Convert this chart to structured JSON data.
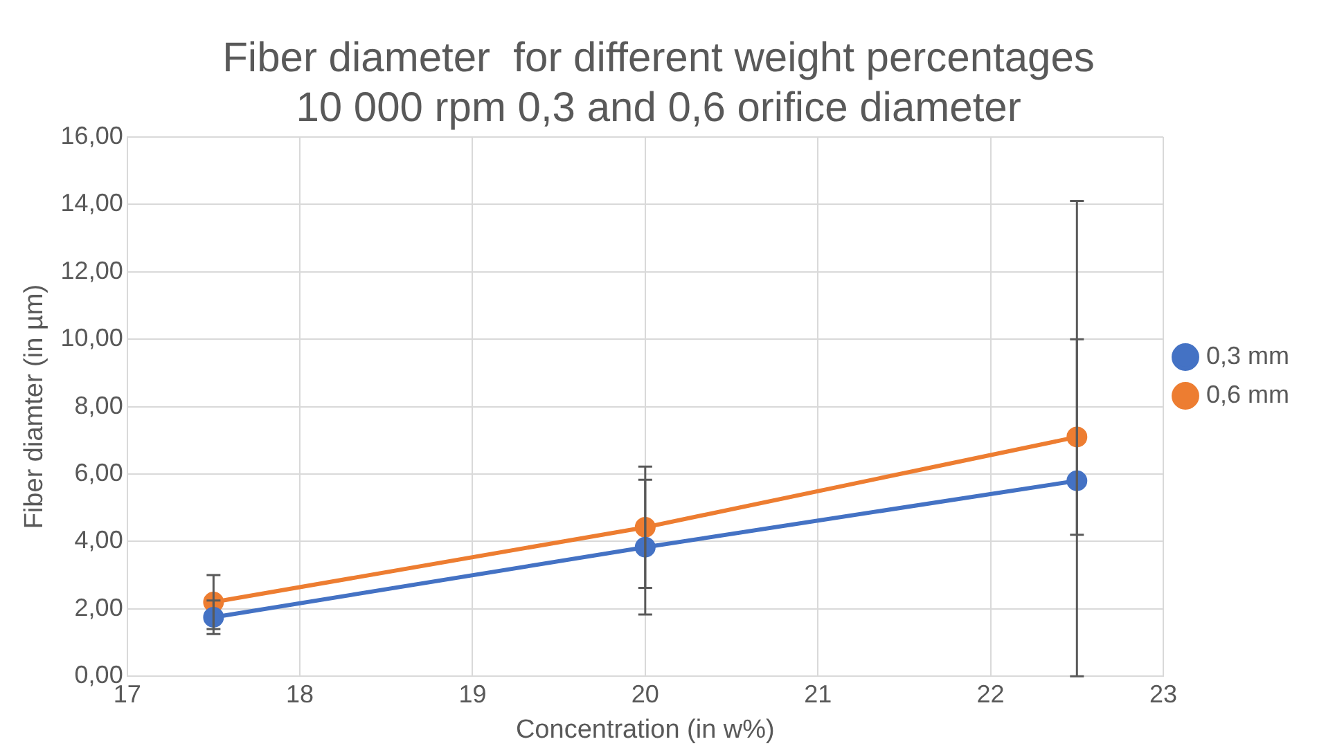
{
  "chart_data": {
    "type": "line",
    "title": "Fiber diameter  for different weight percentages\n10 000 rpm 0,3 and 0,6 orifice diameter",
    "xlabel": "Concentration (in w%)",
    "ylabel": "Fiber diamter (in µm)",
    "x": [
      17.5,
      20,
      22.5
    ],
    "series": [
      {
        "name": "0,3 mm",
        "color": "#4472c4",
        "values": [
          1.75,
          3.83,
          5.8
        ],
        "errors": [
          0.5,
          2.0,
          [
            0,
            14.1
          ]
        ]
      },
      {
        "name": "0,6 mm",
        "color": "#ed7d31",
        "values": [
          2.2,
          4.42,
          7.1
        ],
        "errors": [
          0.8,
          1.8,
          2.9
        ]
      }
    ],
    "xlim": [
      17,
      23
    ],
    "xticks": [
      17,
      18,
      19,
      20,
      21,
      22,
      23
    ],
    "ylim": [
      0,
      16
    ],
    "yticks": [
      {
        "value": 0,
        "label": "0,00"
      },
      {
        "value": 2,
        "label": "2,00"
      },
      {
        "value": 4,
        "label": "4,00"
      },
      {
        "value": 6,
        "label": "6,00"
      },
      {
        "value": 8,
        "label": "8,00"
      },
      {
        "value": 10,
        "label": "10,00"
      },
      {
        "value": 12,
        "label": "12,00"
      },
      {
        "value": 14,
        "label": "14,00"
      },
      {
        "value": 16,
        "label": "16,00"
      }
    ],
    "grid": true,
    "legend": "right",
    "marker": "circle",
    "line_style": "solid"
  }
}
